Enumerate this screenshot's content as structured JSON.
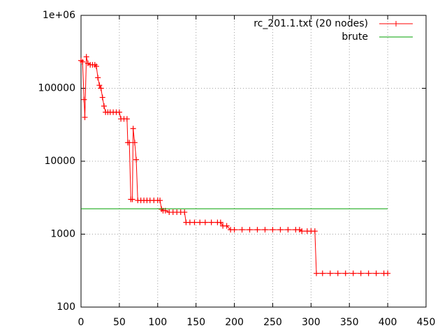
{
  "chart_data": {
    "type": "line",
    "x": [
      0,
      2,
      4,
      5,
      7,
      9,
      12,
      15,
      18,
      20,
      22,
      24,
      26,
      28,
      30,
      32,
      35,
      38,
      42,
      46,
      50,
      52,
      56,
      60,
      61,
      63,
      65,
      67,
      68,
      70,
      72,
      74,
      78,
      82,
      86,
      90,
      95,
      100,
      103,
      105,
      107,
      110,
      115,
      120,
      125,
      130,
      135,
      137,
      142,
      148,
      155,
      162,
      170,
      178,
      182,
      185,
      190,
      195,
      200,
      210,
      220,
      230,
      240,
      250,
      260,
      270,
      280,
      285,
      288,
      295,
      300,
      305,
      307,
      315,
      325,
      335,
      345,
      355,
      365,
      375,
      385,
      395,
      400
    ],
    "series": [
      {
        "name": "rc_201.1.txt (20 nodes)",
        "color": "#ff0000",
        "marker": "+",
        "values": [
          240000,
          230000,
          70000,
          40000,
          270000,
          220000,
          210000,
          210000,
          210000,
          200000,
          140000,
          110000,
          100000,
          75000,
          57000,
          47000,
          47000,
          47000,
          47000,
          47000,
          47000,
          38000,
          38000,
          38000,
          18000,
          18000,
          3000,
          3000,
          28000,
          18000,
          10500,
          2900,
          2900,
          2900,
          2900,
          2900,
          2900,
          2900,
          2900,
          2200,
          2100,
          2100,
          2000,
          2000,
          2000,
          2000,
          2000,
          1450,
          1450,
          1450,
          1450,
          1450,
          1450,
          1450,
          1450,
          1300,
          1300,
          1150,
          1150,
          1150,
          1150,
          1150,
          1150,
          1150,
          1150,
          1150,
          1150,
          1150,
          1100,
          1100,
          1100,
          1100,
          290,
          290,
          290,
          290,
          290,
          290,
          290,
          290,
          290,
          290,
          290
        ]
      },
      {
        "name": "brute",
        "color": "#00a000",
        "x": [
          0,
          400
        ],
        "values": [
          2230,
          2230
        ]
      }
    ],
    "xlim": [
      0,
      450
    ],
    "xticks": [
      0,
      50,
      100,
      150,
      200,
      250,
      300,
      350,
      400,
      450
    ],
    "ylim": [
      100,
      1000000
    ],
    "yticks": [
      100,
      1000,
      10000,
      100000,
      {
        "value": 1000000,
        "label": "1e+06"
      }
    ],
    "log_y": true,
    "grid": true,
    "legend": "top-right"
  }
}
